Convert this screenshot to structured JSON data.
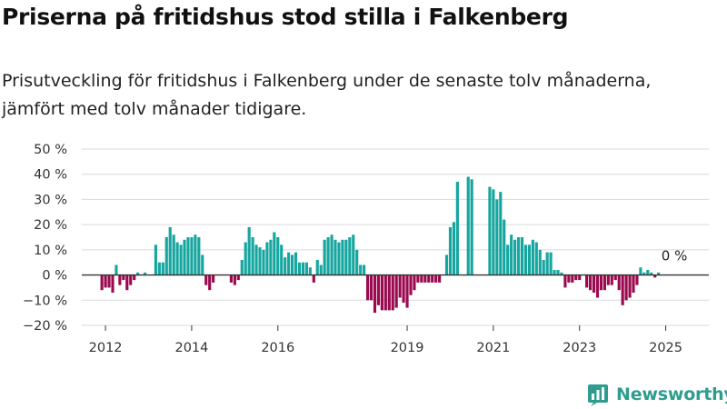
{
  "header": {
    "title": "Priserna på fritidshus stod stilla i Falkenberg",
    "subtitle": "Prisutveckling för fritidshus i Falkenberg under de senaste tolv månaderna, jämfört med tolv månader tidigare."
  },
  "brand": {
    "name": "Newsworthy",
    "icon": "newsworthy-chart-icon",
    "color": "#2e9c8f"
  },
  "colors": {
    "positive": "#16a6a0",
    "negative": "#9b0a4f",
    "grid": "#d9d9d9",
    "zero_line": "#333333"
  },
  "chart_data": {
    "type": "bar",
    "ylim": [
      -20,
      50
    ],
    "y_ticks": [
      -20,
      -10,
      0,
      10,
      20,
      30,
      40,
      50
    ],
    "y_tick_labels": [
      "−20 %",
      "−10 %",
      "0 %",
      "10 %",
      "20 %",
      "30 %",
      "40 %",
      "50 %"
    ],
    "x_tick_labels": [
      "2012",
      "2014",
      "2016",
      "2019",
      "2021",
      "2023",
      "2025"
    ],
    "x_tick_positions": [
      2012,
      2014,
      2016,
      2019,
      2021,
      2023,
      2025
    ],
    "xlim": [
      2011.45,
      2026.0
    ],
    "grid": true,
    "annotation": {
      "text": "0 %",
      "x": 2025.2
    },
    "start": {
      "year": 2011,
      "month": 12
    },
    "values": [
      -6,
      -5,
      -5,
      -7,
      4,
      -4,
      -2,
      -6,
      -4,
      -2,
      1,
      0,
      1,
      0,
      0,
      12,
      5,
      5,
      15,
      19,
      16,
      13,
      12,
      14,
      15,
      15,
      16,
      15,
      8,
      -4,
      -6,
      -3,
      0,
      0,
      0,
      0,
      -3,
      -4,
      -2,
      6,
      13,
      19,
      15,
      12,
      11,
      10,
      13,
      14,
      17,
      15,
      12,
      7,
      9,
      8,
      9,
      5,
      5,
      5,
      3,
      -3,
      6,
      4,
      14,
      15,
      16,
      14,
      13,
      14,
      14,
      15,
      16,
      10,
      4,
      4,
      -10,
      -10,
      -15,
      -12,
      -14,
      -14,
      -14,
      -14,
      -13,
      -9,
      -11,
      -13,
      -8,
      -6,
      -3,
      -3,
      -3,
      -3,
      -3,
      -3,
      -3,
      null,
      8,
      19,
      21,
      37,
      null,
      null,
      39,
      38,
      null,
      null,
      null,
      null,
      35,
      34,
      30,
      33,
      22,
      12,
      16,
      14,
      15,
      15,
      12,
      12,
      14,
      13,
      10,
      6,
      9,
      9,
      2,
      2,
      1,
      -5,
      -3,
      -3,
      -2,
      -2,
      0,
      -5,
      -6,
      -7,
      -9,
      -6,
      -6,
      -4,
      -4,
      -2,
      -6,
      -12,
      -10,
      -9,
      -7,
      -4,
      3,
      1,
      2,
      1,
      -1,
      1,
      0,
      0,
      0,
      0
    ]
  }
}
